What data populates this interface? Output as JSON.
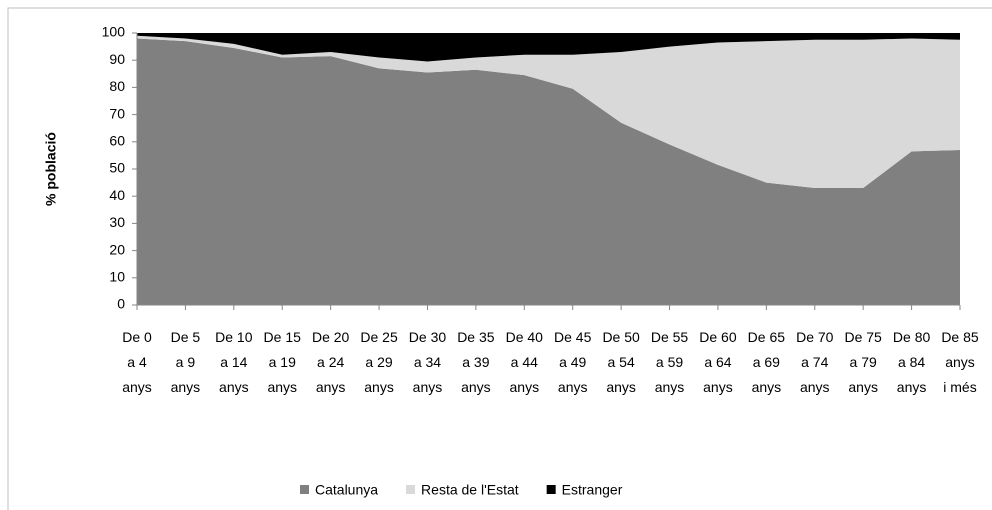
{
  "chart_data": {
    "type": "stacked_area",
    "y_label": "% població",
    "categories": [
      "De 0 a 4 anys",
      "De 5 a 9 anys",
      "De 10 a 14 anys",
      "De 15 a 19 anys",
      "De 20 a 24 anys",
      "De 25 a 29 anys",
      "De 30 a 34 anys",
      "De 35 a 39 anys",
      "De 40 a 44 anys",
      "De 45 a 49 anys",
      "De 50 a 54 anys",
      "De 55 a 59 anys",
      "De 60 a 64 anys",
      "De 65 a 69 anys",
      "De 70 a 74 anys",
      "De 75 a 79 anys",
      "De 80 a 84 anys",
      "De 85 anys i més"
    ],
    "series": [
      {
        "name": "Catalunya",
        "color": "#808080",
        "values": [
          98,
          97,
          94.5,
          91,
          91.5,
          87,
          85.5,
          86.5,
          84.5,
          79.5,
          67,
          59,
          51.5,
          45,
          43,
          43,
          56.5,
          57
        ]
      },
      {
        "name": "Resta de l'Estat",
        "color": "#d9d9d9",
        "values": [
          1,
          1,
          1.5,
          1,
          1.5,
          4,
          4,
          4.5,
          7.5,
          12.5,
          26,
          36,
          45,
          52,
          54.5,
          54.5,
          41.5,
          40.5
        ]
      },
      {
        "name": "Estranger",
        "color": "#000000",
        "values": [
          1,
          2,
          4,
          8,
          7,
          9,
          10.5,
          9,
          8,
          8,
          7,
          5,
          3.5,
          3,
          2.5,
          2.5,
          2,
          2.5
        ]
      }
    ],
    "ylim": [
      0,
      100
    ],
    "yticks": [
      0,
      10,
      20,
      30,
      40,
      50,
      60,
      70,
      80,
      90,
      100
    ],
    "legend": "bottom"
  }
}
